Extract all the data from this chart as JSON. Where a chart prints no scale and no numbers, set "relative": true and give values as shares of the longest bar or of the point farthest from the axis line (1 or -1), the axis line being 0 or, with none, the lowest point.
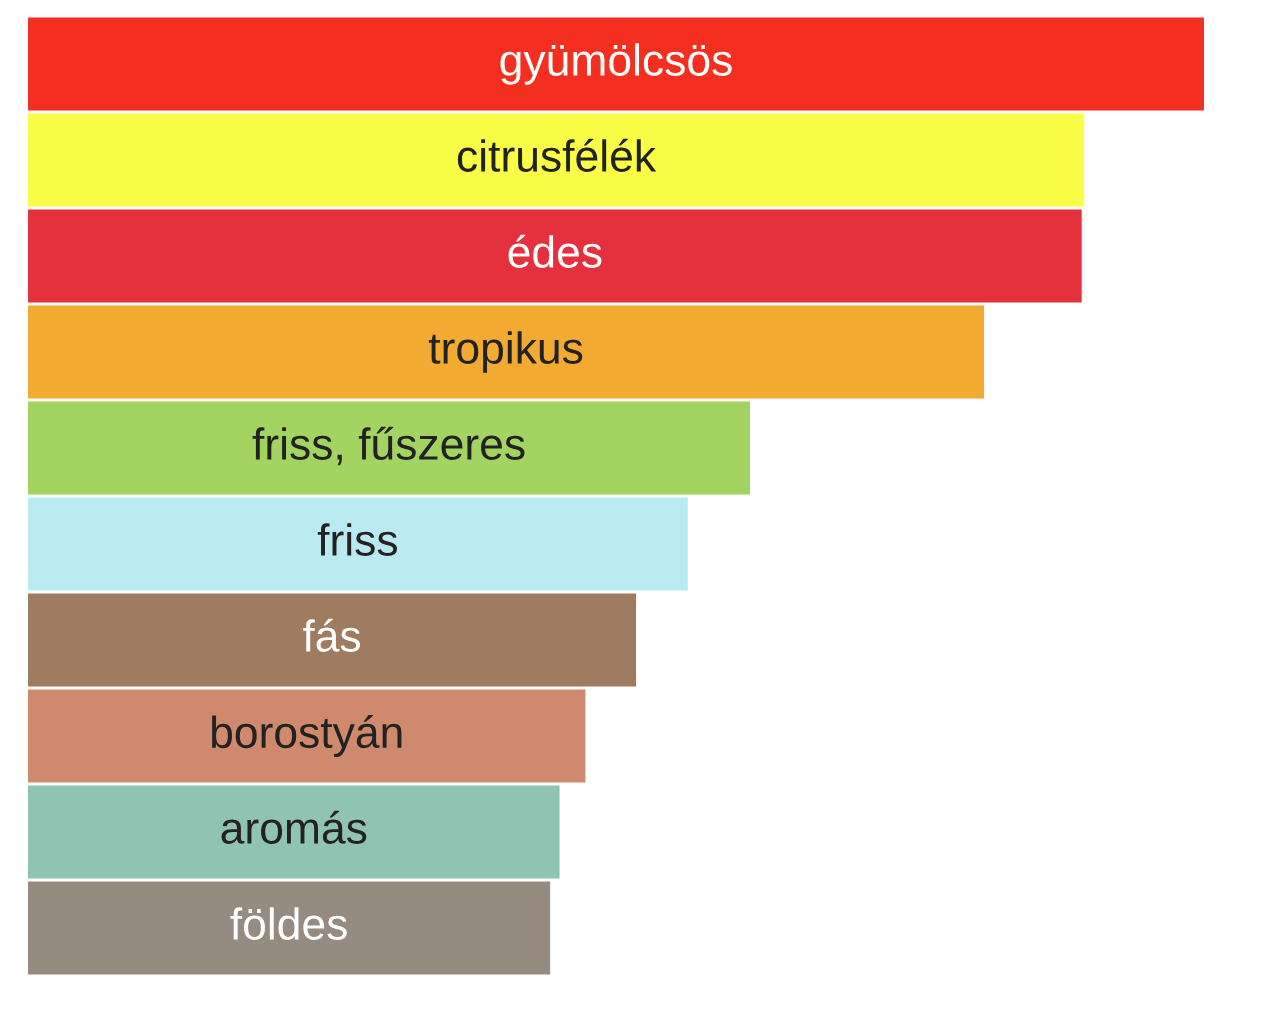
{
  "chart_data": {
    "type": "bar",
    "orientation": "horizontal",
    "relative": true,
    "categories": [
      "gyümölcsös",
      "citrusfélék",
      "édes",
      "tropikus",
      "friss, fűszeres",
      "friss",
      "fás",
      "borostyán",
      "aromás",
      "földes"
    ],
    "values": [
      1,
      0.898,
      0.896,
      0.813,
      0.614,
      0.561,
      0.517,
      0.474,
      0.452,
      0.444
    ],
    "colors": [
      "#f42f20",
      "#fafd45",
      "#e5303e",
      "#f2ab30",
      "#a3d462",
      "#b8eaf0",
      "#9f7c60",
      "#cf896c",
      "#8fc4b2",
      "#958b80"
    ]
  }
}
